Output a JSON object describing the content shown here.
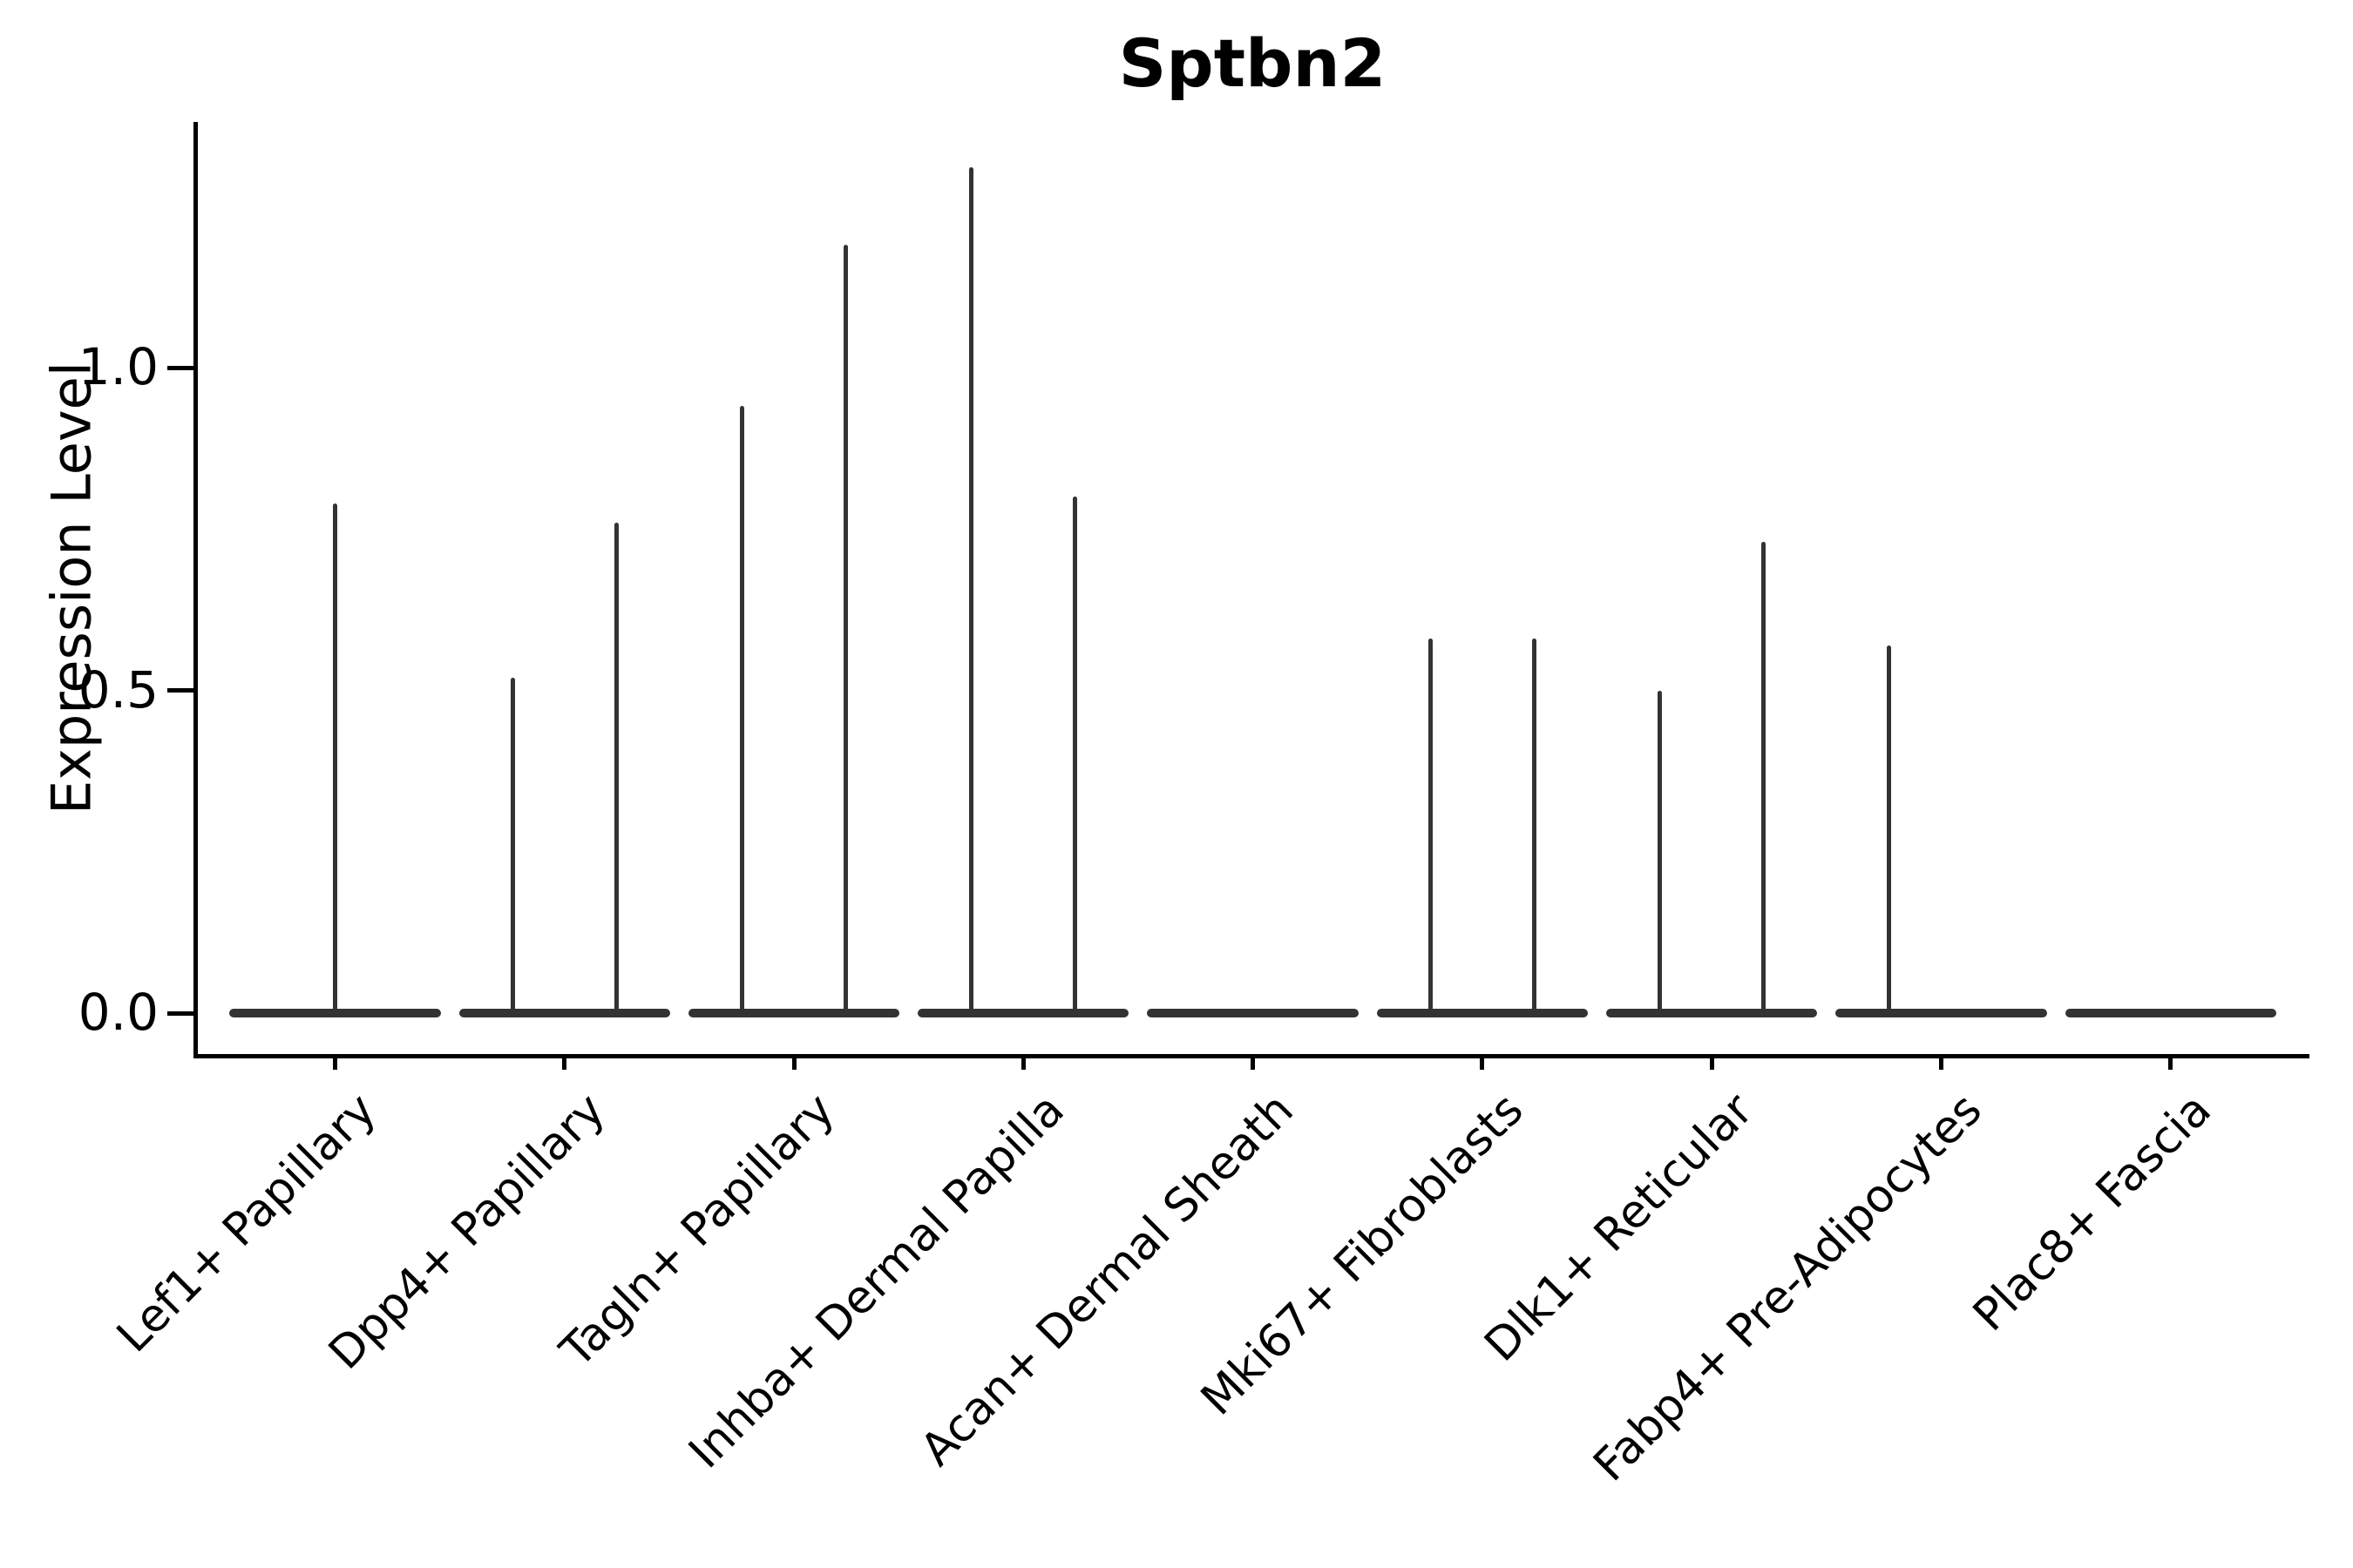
{
  "chart_data": {
    "type": "violin",
    "title": "Sptbn2",
    "ylabel": "Expression Level",
    "xlabel": "",
    "ylim": [
      -0.06,
      1.39
    ],
    "grid": false,
    "legend": "none",
    "line_color": "#333333",
    "axis_color": "#000000",
    "violin_width": 0.92,
    "yticks": [
      {
        "value": 0.0,
        "label": "0.0"
      },
      {
        "value": 0.5,
        "label": "0.5"
      },
      {
        "value": 1.0,
        "label": "1.0"
      }
    ],
    "categories": [
      {
        "label": "Lef1+ Papillary",
        "max_expression": 0.79,
        "spikes": [
          {
            "offset": 0,
            "value": 0.79
          }
        ]
      },
      {
        "label": "Dpp4+ Papillary",
        "max_expression": 0.76,
        "spikes": [
          {
            "offset": -0.226,
            "value": 0.52
          },
          {
            "offset": 0.226,
            "value": 0.76
          }
        ]
      },
      {
        "label": "Tagln+ Papillary",
        "max_expression": 1.19,
        "spikes": [
          {
            "offset": -0.226,
            "value": 0.94
          },
          {
            "offset": 0.226,
            "value": 1.19
          }
        ]
      },
      {
        "label": "Inhba+ Dermal Papilla",
        "max_expression": 1.31,
        "spikes": [
          {
            "offset": -0.226,
            "value": 1.31
          },
          {
            "offset": 0.226,
            "value": 0.8
          }
        ]
      },
      {
        "label": "Acan+ Dermal Sheath",
        "max_expression": 0.0,
        "spikes": []
      },
      {
        "label": "Mki67+ Fibroblasts",
        "max_expression": 0.58,
        "spikes": [
          {
            "offset": -0.226,
            "value": 0.58
          },
          {
            "offset": 0.226,
            "value": 0.58
          }
        ]
      },
      {
        "label": "Dlk1+ Reticular",
        "max_expression": 0.73,
        "spikes": [
          {
            "offset": -0.226,
            "value": 0.5
          },
          {
            "offset": 0.226,
            "value": 0.73
          }
        ]
      },
      {
        "label": "Fabp4+ Pre-Adipocytes",
        "max_expression": 0.57,
        "spikes": [
          {
            "offset": -0.226,
            "value": 0.57
          }
        ]
      },
      {
        "label": "Plac8+ Fascia",
        "max_expression": 0.0,
        "spikes": []
      }
    ]
  }
}
